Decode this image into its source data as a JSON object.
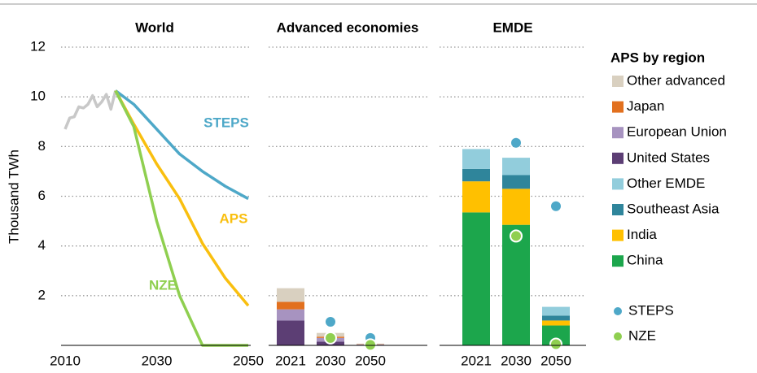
{
  "chart_data": [
    {
      "type": "line",
      "title": "World",
      "y_label": "Thousand TWh",
      "xlim": [
        2010,
        2050
      ],
      "xticks": [
        2010,
        2030,
        2050
      ],
      "ylim": [
        0,
        12
      ],
      "yticks": [
        2,
        4,
        6,
        8,
        10,
        12
      ],
      "grid": true,
      "series": [
        {
          "color": "#c8c8c8",
          "x": [
            2010,
            2011,
            2012,
            2013,
            2014,
            2015,
            2016,
            2017,
            2018,
            2019,
            2020,
            2021
          ],
          "values": [
            8.7,
            9.15,
            9.2,
            9.6,
            9.55,
            9.7,
            10.05,
            9.6,
            9.8,
            10.1,
            9.5,
            10.25
          ]
        },
        {
          "name": "STEPS",
          "color": "#4ea8c8",
          "x": [
            2021,
            2025,
            2030,
            2035,
            2040,
            2045,
            2050
          ],
          "values": [
            10.25,
            9.7,
            8.7,
            7.7,
            7.0,
            6.4,
            5.9
          ]
        },
        {
          "name": "APS",
          "color": "#f9bf0f",
          "x": [
            2021,
            2025,
            2030,
            2035,
            2040,
            2045,
            2050
          ],
          "values": [
            10.25,
            8.9,
            7.3,
            5.9,
            4.1,
            2.7,
            1.6
          ]
        },
        {
          "name": "NZE",
          "color": "#8fcf50",
          "x": [
            2021,
            2025,
            2030,
            2035,
            2040,
            2045,
            2050
          ],
          "values": [
            10.25,
            8.8,
            5.0,
            2.0,
            0,
            0,
            0
          ]
        }
      ]
    },
    {
      "type": "stacked_bar",
      "title": "Advanced economies",
      "legend_title": "APS by region",
      "categories": [
        "2021",
        "2030",
        "2050"
      ],
      "series": [
        {
          "name": "United States",
          "color": "#5c3e74",
          "values": [
            1.0,
            0.15,
            0.02
          ]
        },
        {
          "name": "European Union",
          "color": "#a793c0",
          "values": [
            0.45,
            0.15,
            0.02
          ]
        },
        {
          "name": "Japan",
          "color": "#e2701e",
          "values": [
            0.3,
            0.05,
            0.01
          ]
        },
        {
          "name": "Other advanced",
          "color": "#d9d0c0",
          "values": [
            0.55,
            0.15,
            0.02
          ]
        }
      ],
      "markers": [
        {
          "name": "STEPS",
          "color": "#4ea8c8",
          "values": [
            null,
            0.95,
            0.3
          ]
        },
        {
          "name": "NZE",
          "color": "#8fcf50",
          "values": [
            null,
            0.3,
            0.02
          ]
        }
      ]
    },
    {
      "type": "stacked_bar",
      "title": "EMDE",
      "categories": [
        "2021",
        "2030",
        "2050"
      ],
      "series": [
        {
          "name": "China",
          "color": "#1ca64c",
          "values": [
            5.35,
            4.85,
            0.8
          ]
        },
        {
          "name": "India",
          "color": "#ffc000",
          "values": [
            1.25,
            1.45,
            0.2
          ]
        },
        {
          "name": "Southeast Asia",
          "color": "#2f859b",
          "values": [
            0.5,
            0.55,
            0.2
          ]
        },
        {
          "name": "Other EMDE",
          "color": "#92cddc",
          "values": [
            0.8,
            0.7,
            0.35
          ]
        }
      ],
      "markers": [
        {
          "name": "STEPS",
          "color": "#4ea8c8",
          "values": [
            null,
            8.15,
            5.6
          ]
        },
        {
          "name": "NZE",
          "color": "#8fcf50",
          "values": [
            null,
            4.4,
            0.05
          ]
        }
      ]
    }
  ]
}
